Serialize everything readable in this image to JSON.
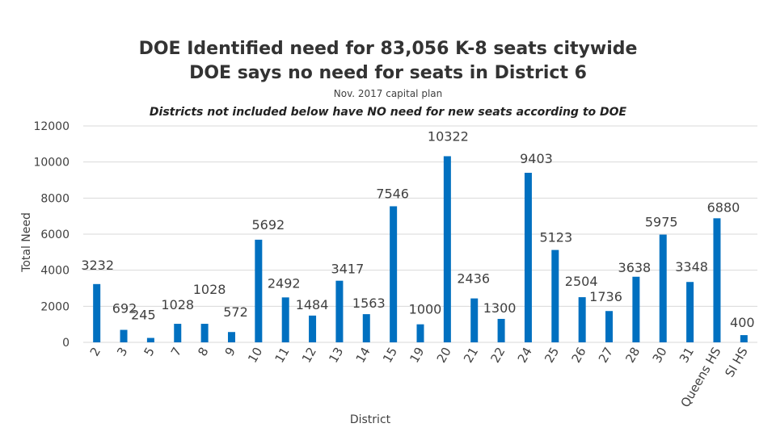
{
  "chart_data": {
    "type": "bar",
    "title": "DOE Identified need for 83,056 K-8 seats citywide",
    "subtitle": "DOE says no need for seats in District 6",
    "note": "Nov. 2017 capital plan",
    "annotation": "Districts not included below have NO need for new seats according to DOE",
    "xlabel": "District",
    "ylabel": "Total Need",
    "ylim": [
      0,
      12000
    ],
    "yticks": [
      0,
      2000,
      4000,
      6000,
      8000,
      10000,
      12000
    ],
    "grid": true,
    "color": "#0070C0",
    "categories": [
      "2",
      "3",
      "5",
      "7",
      "8",
      "9",
      "10",
      "11",
      "12",
      "13",
      "14",
      "15",
      "19",
      "20",
      "21",
      "22",
      "24",
      "25",
      "26",
      "27",
      "28",
      "30",
      "31",
      "Queens HS",
      "SI HS"
    ],
    "values": [
      3232,
      692,
      245,
      1028,
      1028,
      572,
      5692,
      2492,
      1484,
      3417,
      1563,
      7546,
      1000,
      10322,
      2436,
      1300,
      9403,
      5123,
      2504,
      1736,
      3638,
      5975,
      3348,
      6880,
      400
    ]
  }
}
